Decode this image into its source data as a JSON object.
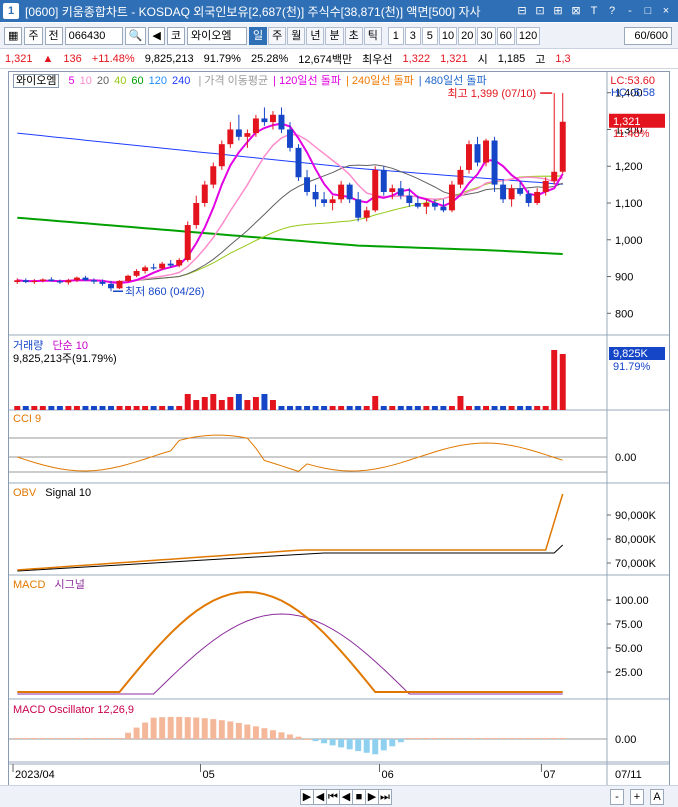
{
  "titlebar": {
    "num": "1",
    "title": "[0600] 키움종합차트 - KOSDAQ 외국인보유[2,687(천)] 주식수[38,871(천)] 액면[500] 자사",
    "btn_icons": [
      "window-icon",
      "link-icon",
      "copy-icon",
      "chart-icon",
      "font-icon",
      "help-icon",
      "minimize-icon",
      "restore-icon",
      "close-icon"
    ],
    "btn_glyphs": [
      "⊟",
      "⊡",
      "⊞",
      "⊠",
      "T",
      "?",
      "-",
      "□",
      "×"
    ]
  },
  "toolbar": {
    "main_grid": "▦",
    "code_type": "주",
    "market": "전",
    "stock_code": "066430",
    "stock_name": "와이오엠",
    "exchange": "코",
    "periods": [
      "일",
      "주",
      "월",
      "년",
      "분",
      "초",
      "틱"
    ],
    "active_period": "일",
    "numbers": [
      "1",
      "3",
      "5",
      "10",
      "20",
      "30",
      "60",
      "120"
    ],
    "count": "60/600"
  },
  "quotebar": {
    "price": "1,321",
    "change_arrow": "▲",
    "change": "136",
    "change_rate": "+11.48%",
    "volume": "9,825,213",
    "volume_ratio": "91.79%",
    "turnover": "25.28%",
    "amount": "12,674백만",
    "best_label": "최우선",
    "ask": "1,322",
    "bid": "1,321",
    "open_label": "시",
    "open": "1,185",
    "high_label": "고",
    "high": "1,3"
  },
  "price_pane": {
    "legend_stock": "와이오엠",
    "ma_labels": [
      "5",
      "10",
      "20",
      "40",
      "60",
      "120",
      "240"
    ],
    "ma_colors": [
      "#e400e4",
      "#ff8ccc",
      "#606060",
      "#96c814",
      "#00a000",
      "#1e8cff",
      "#1e3cff"
    ],
    "overlay_labels": [
      "가격 이동평균",
      "120일선 돌파",
      "240일선 돌파",
      "480일선 돌파"
    ],
    "overlay_colors": [
      "#9a9a9a",
      "#e000e0",
      "#f07800",
      "#1e64c8"
    ],
    "lc": "LC:53.60",
    "hc": "HC:-5.58",
    "current_price": "1,321",
    "current_rate": "11.48%",
    "max_label": "최고 1,399 (07/10)",
    "min_label": "최저 860 (04/26)",
    "yticks": [
      "1,400",
      "1,300",
      "1,200",
      "1,100",
      "1,000",
      "900",
      "800"
    ]
  },
  "volume_pane": {
    "title": "거래량",
    "sub": "단순 10",
    "info": "9,825,213주(91.79%)",
    "current": "9,825K",
    "rate": "91.79%"
  },
  "cci_pane": {
    "title": "CCI 9",
    "zero": "0.00"
  },
  "obv_pane": {
    "title": "OBV",
    "sub": "Signal 10",
    "yticks": [
      "90,000K",
      "80,000K",
      "70,000K"
    ]
  },
  "macd_pane": {
    "title": "MACD",
    "sub": "시그널",
    "yticks": [
      "100.00",
      "75.00",
      "50.00",
      "25.00"
    ]
  },
  "osc_pane": {
    "title": "MACD Oscillator 12,26,9",
    "zero": "0.00"
  },
  "xaxis": {
    "labels": [
      "2023/04",
      "05",
      "06",
      "07"
    ],
    "right": "07/11"
  },
  "chart_data": {
    "type": "candlestick",
    "y_range": [
      760,
      1440
    ],
    "series": [
      {
        "name": "와이오엠",
        "date_range": [
          "2023/04",
          "07/11"
        ],
        "ohlc": [
          [
            885,
            895,
            880,
            890
          ],
          [
            890,
            895,
            882,
            885
          ],
          [
            885,
            893,
            880,
            888
          ],
          [
            888,
            895,
            884,
            892
          ],
          [
            892,
            898,
            886,
            888
          ],
          [
            888,
            892,
            880,
            884
          ],
          [
            884,
            894,
            878,
            890
          ],
          [
            890,
            900,
            885,
            897
          ],
          [
            897,
            902,
            888,
            890
          ],
          [
            890,
            895,
            880,
            886
          ],
          [
            886,
            892,
            875,
            880
          ],
          [
            880,
            888,
            860,
            868
          ],
          [
            868,
            890,
            866,
            888
          ],
          [
            888,
            905,
            885,
            902
          ],
          [
            902,
            920,
            898,
            915
          ],
          [
            915,
            930,
            908,
            925
          ],
          [
            925,
            935,
            918,
            922
          ],
          [
            922,
            940,
            918,
            935
          ],
          [
            935,
            945,
            925,
            930
          ],
          [
            930,
            950,
            925,
            945
          ],
          [
            945,
            1050,
            940,
            1040
          ],
          [
            1040,
            1120,
            1030,
            1100
          ],
          [
            1100,
            1160,
            1090,
            1150
          ],
          [
            1150,
            1210,
            1140,
            1200
          ],
          [
            1200,
            1270,
            1190,
            1260
          ],
          [
            1260,
            1320,
            1250,
            1300
          ],
          [
            1300,
            1340,
            1270,
            1280
          ],
          [
            1280,
            1300,
            1250,
            1290
          ],
          [
            1290,
            1340,
            1280,
            1330
          ],
          [
            1330,
            1360,
            1310,
            1320
          ],
          [
            1320,
            1350,
            1300,
            1340
          ],
          [
            1340,
            1360,
            1290,
            1300
          ],
          [
            1300,
            1320,
            1240,
            1250
          ],
          [
            1250,
            1260,
            1160,
            1170
          ],
          [
            1170,
            1190,
            1120,
            1130
          ],
          [
            1130,
            1150,
            1090,
            1110
          ],
          [
            1110,
            1130,
            1090,
            1100
          ],
          [
            1100,
            1120,
            1080,
            1110
          ],
          [
            1110,
            1160,
            1100,
            1150
          ],
          [
            1150,
            1155,
            1100,
            1110
          ],
          [
            1110,
            1130,
            1050,
            1060
          ],
          [
            1060,
            1090,
            1050,
            1080
          ],
          [
            1080,
            1200,
            1075,
            1190
          ],
          [
            1190,
            1200,
            1120,
            1130
          ],
          [
            1130,
            1150,
            1110,
            1140
          ],
          [
            1140,
            1160,
            1110,
            1120
          ],
          [
            1120,
            1140,
            1090,
            1100
          ],
          [
            1100,
            1120,
            1085,
            1090
          ],
          [
            1090,
            1110,
            1070,
            1100
          ],
          [
            1100,
            1110,
            1080,
            1090
          ],
          [
            1090,
            1110,
            1075,
            1080
          ],
          [
            1080,
            1160,
            1075,
            1150
          ],
          [
            1150,
            1200,
            1140,
            1190
          ],
          [
            1190,
            1270,
            1180,
            1260
          ],
          [
            1260,
            1280,
            1200,
            1210
          ],
          [
            1210,
            1275,
            1200,
            1270
          ],
          [
            1270,
            1280,
            1130,
            1150
          ],
          [
            1150,
            1165,
            1100,
            1110
          ],
          [
            1110,
            1150,
            1090,
            1140
          ],
          [
            1140,
            1160,
            1120,
            1125
          ],
          [
            1125,
            1135,
            1090,
            1100
          ],
          [
            1100,
            1140,
            1095,
            1130
          ],
          [
            1130,
            1170,
            1120,
            1160
          ],
          [
            1160,
            1399,
            1150,
            1185
          ],
          [
            1185,
            1399,
            1180,
            1321
          ]
        ]
      }
    ]
  },
  "bottombar": {
    "buttons": [
      "▶",
      "◀",
      "⏮",
      "◀",
      "■",
      "▶",
      "⏭",
      "-",
      "+",
      "A"
    ]
  }
}
